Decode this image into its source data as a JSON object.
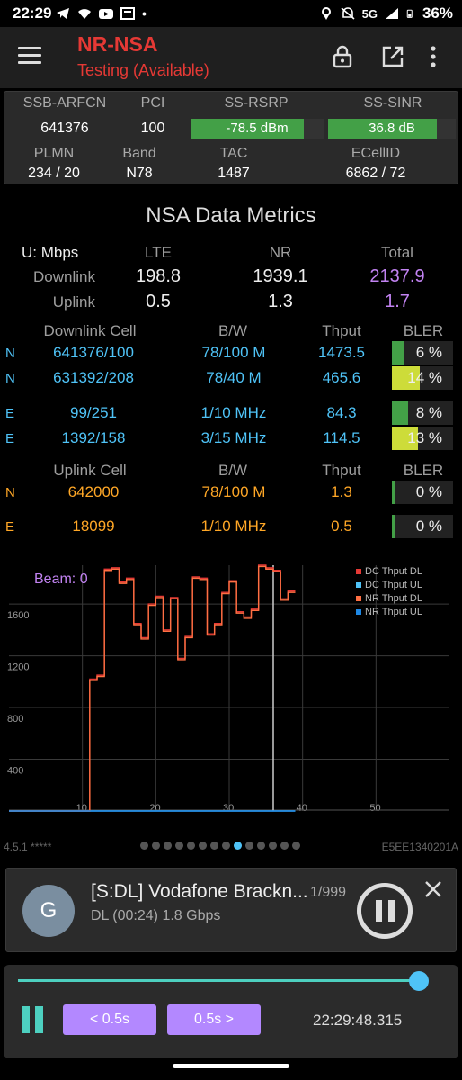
{
  "status_bar": {
    "time": "22:29",
    "network": "5G",
    "battery": "36%",
    "dot": "•"
  },
  "app": {
    "title": "NR-NSA",
    "subtitle": "Testing (Available)"
  },
  "info": {
    "labels": {
      "arfcn": "SSB-ARFCN",
      "pci": "PCI",
      "rsrp": "SS-RSRP",
      "sinr": "SS-SINR",
      "plmn": "PLMN",
      "band": "Band",
      "tac": "TAC",
      "ecellid": "ECellID"
    },
    "values": {
      "arfcn": "641376",
      "pci": "100",
      "rsrp": "-78.5 dBm",
      "sinr": "36.8 dB",
      "plmn": "234 / 20",
      "band": "N78",
      "tac": "1487",
      "ecellid": "6862 / 72"
    },
    "rsrp_level": 0.85,
    "sinr_level": 0.85
  },
  "metrics": {
    "title": "NSA Data Metrics",
    "unit_label": "U: Mbps",
    "cols": {
      "lte": "LTE",
      "nr": "NR",
      "total": "Total"
    },
    "downlink": {
      "label": "Downlink",
      "lte": "198.8",
      "nr": "1939.1",
      "total": "2137.9"
    },
    "uplink": {
      "label": "Uplink",
      "lte": "0.5",
      "nr": "1.3",
      "total": "1.7"
    }
  },
  "downlink_cells": {
    "headers": {
      "cell": "Downlink Cell",
      "bw": "B/W",
      "thput": "Thput",
      "bler": "BLER"
    },
    "rows": [
      {
        "type": "N",
        "cell": "641376/100",
        "bw": "78/100 M",
        "thput": "1473.5",
        "bler": "6 %",
        "bler_value": 6,
        "color": "#43a047"
      },
      {
        "type": "N",
        "cell": "631392/208",
        "bw": "78/40 M",
        "thput": "465.6",
        "bler": "14 %",
        "bler_value": 14,
        "color": "#cddc39"
      },
      {
        "type": "E",
        "cell": "99/251",
        "bw": "1/10 MHz",
        "thput": "84.3",
        "bler": "8 %",
        "bler_value": 8,
        "color": "#43a047"
      },
      {
        "type": "E",
        "cell": "1392/158",
        "bw": "3/15 MHz",
        "thput": "114.5",
        "bler": "13 %",
        "bler_value": 13,
        "color": "#cddc39"
      }
    ]
  },
  "uplink_cells": {
    "headers": {
      "cell": "Uplink Cell",
      "bw": "B/W",
      "thput": "Thput",
      "bler": "BLER"
    },
    "rows": [
      {
        "type": "N",
        "cell": "642000",
        "bw": "78/100 M",
        "thput": "1.3",
        "bler": "0 %",
        "bler_value": 0
      },
      {
        "type": "E",
        "cell": "18099",
        "bw": "1/10 MHz",
        "thput": "0.5",
        "bler": "0 %",
        "bler_value": 0
      }
    ]
  },
  "chart_data": {
    "type": "line",
    "beam_label": "Beam: 0",
    "xlim": [
      0,
      60
    ],
    "ylim": [
      0,
      1900
    ],
    "x_ticks": [
      10,
      20,
      30,
      40,
      50
    ],
    "y_ticks": [
      400,
      800,
      1200,
      1600
    ],
    "cursor_x": 36,
    "legend_position": "top-right",
    "series": [
      {
        "name": "DC Thput DL",
        "color": "#e53935",
        "x": [
          0,
          10,
          11,
          12,
          13,
          14,
          15,
          16,
          17,
          18,
          19,
          20,
          21,
          22,
          23,
          24,
          25,
          26,
          27,
          28,
          29,
          30,
          31,
          32,
          33,
          34,
          35,
          36,
          37,
          38,
          39
        ],
        "y": [
          0,
          0,
          1020,
          1050,
          1870,
          1880,
          1770,
          1800,
          1450,
          1340,
          1600,
          1660,
          1400,
          1650,
          1180,
          1350,
          1810,
          1800,
          1370,
          1450,
          1690,
          1780,
          1540,
          1500,
          1560,
          1900,
          1880,
          1860,
          1640,
          1700,
          1700
        ]
      },
      {
        "name": "DC Thput UL",
        "color": "#4fc3f7",
        "x": [
          0,
          39
        ],
        "y": [
          0,
          0
        ]
      },
      {
        "name": "NR Thput DL",
        "color": "#ff7043",
        "x": [
          0,
          10,
          11,
          12,
          13,
          14,
          15,
          16,
          17,
          18,
          19,
          20,
          21,
          22,
          23,
          24,
          25,
          26,
          27,
          28,
          29,
          30,
          31,
          32,
          33,
          34,
          35,
          36,
          37,
          38,
          39
        ],
        "y": [
          0,
          0,
          1010,
          1040,
          1860,
          1870,
          1760,
          1790,
          1440,
          1330,
          1590,
          1650,
          1390,
          1640,
          1170,
          1340,
          1800,
          1790,
          1360,
          1440,
          1680,
          1770,
          1530,
          1490,
          1550,
          1890,
          1870,
          1850,
          1630,
          1690,
          1690
        ]
      },
      {
        "name": "NR Thput UL",
        "color": "#1e88e5",
        "x": [
          0,
          39
        ],
        "y": [
          0,
          0
        ]
      }
    ]
  },
  "footer": {
    "version": "4.5.1 *****",
    "device_id": "E5EE1340201A",
    "page_count": 14,
    "active_page": 9
  },
  "notification": {
    "avatar_letter": "G",
    "title": "[S:DL] Vodafone Brackn...",
    "count": "1/999",
    "subtitle": "DL (00:24) 1.8 Gbps"
  },
  "player": {
    "prev_label": "< 0.5s",
    "next_label": "0.5s >",
    "timestamp": "22:29:48.315",
    "progress": 0.97
  }
}
